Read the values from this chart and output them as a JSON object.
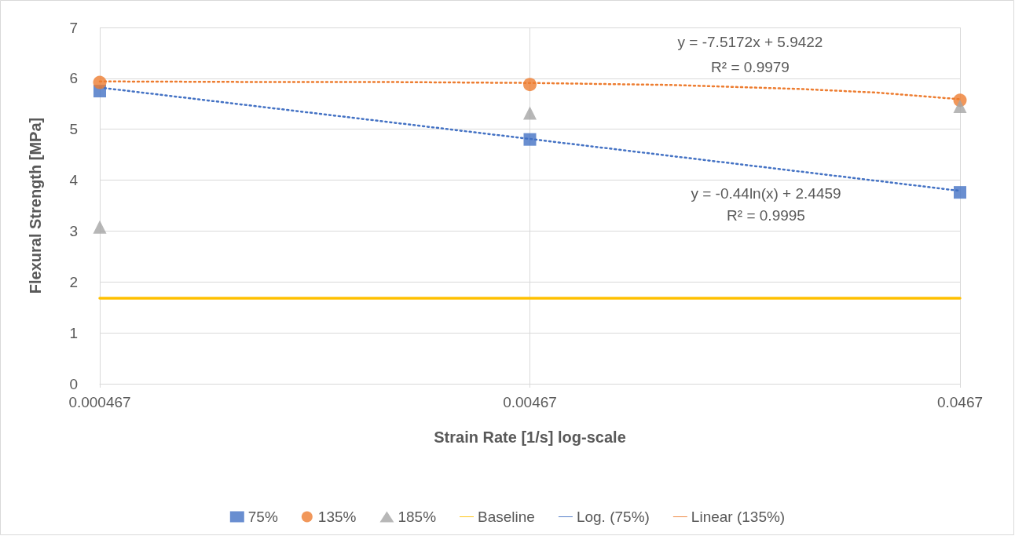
{
  "chart_data": {
    "type": "scatter",
    "xlabel": "Strain Rate [1/s] log-scale",
    "ylabel": "Flexural Strength [MPa]",
    "log": "x",
    "xlim": [
      0.000467,
      0.0467
    ],
    "xticks": [
      0.000467,
      0.00467,
      0.0467
    ],
    "ylim": [
      0,
      7
    ],
    "yticks": [
      0,
      1,
      2,
      3,
      4,
      5,
      6,
      7
    ],
    "grid": true,
    "legend": "bottom",
    "x": [
      0.000467,
      0.00467,
      0.0467
    ],
    "series": [
      {
        "name": "75%",
        "marker": "square",
        "color": "#4472c4",
        "values": [
          5.75,
          4.8,
          3.76
        ]
      },
      {
        "name": "135%",
        "marker": "circle",
        "color": "#ed7d31",
        "values": [
          5.92,
          5.88,
          5.57
        ]
      },
      {
        "name": "185%",
        "marker": "triangle",
        "color": "#a5a5a5",
        "values": [
          3.08,
          5.32,
          5.45
        ]
      },
      {
        "name": "Baseline",
        "type": "line",
        "marker": "none",
        "line_style": "solid",
        "color": "#ffc000",
        "x": [
          0.000467,
          0.0467
        ],
        "values": [
          1.68,
          1.68
        ]
      },
      {
        "name": "Log. (75%)",
        "type": "line",
        "marker": "none",
        "line_style": "dotted",
        "color": "#4472c4",
        "x": [
          0.000467,
          0.00467,
          0.0467
        ],
        "values": [
          5.82,
          4.81,
          3.79
        ]
      },
      {
        "name": "Linear (135%)",
        "type": "line",
        "marker": "none",
        "line_style": "dotted",
        "color": "#ed7d31",
        "x": [
          0.000467,
          0.001,
          0.002,
          0.00467,
          0.01,
          0.02,
          0.03,
          0.0467
        ],
        "values": [
          5.94,
          5.93,
          5.93,
          5.91,
          5.87,
          5.79,
          5.72,
          5.59
        ]
      }
    ],
    "annotations": [
      "y = -7.5172x + 5.9422",
      "R² = 0.9979",
      "y = -0.44ln(x) + 2.4459",
      "R² = 0.9995"
    ]
  }
}
